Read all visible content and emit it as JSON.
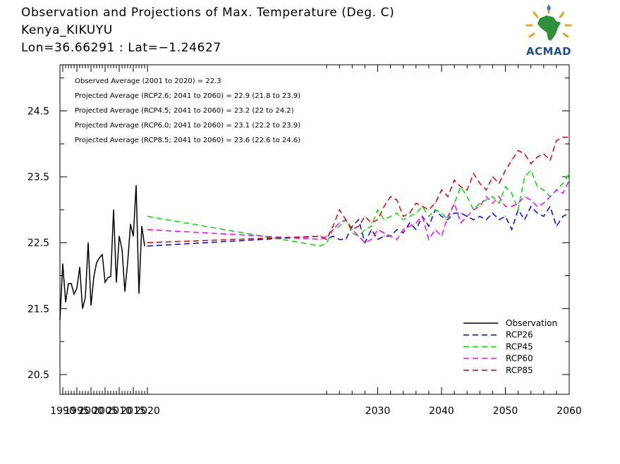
{
  "header": {
    "title": "Observation and Projections of Max. Temperature (Deg. C)",
    "location": "Kenya_KIKUYU",
    "coords": "Lon=36.66291 : Lat=−1.24627"
  },
  "logo": {
    "text": "ACMAD",
    "icon": "africa-map-logo-icon"
  },
  "colors": {
    "Observation": "#000000",
    "RCP26": "#0000ff",
    "RCP45": "#00e000",
    "RCP60": "#ff00ff",
    "RCP85": "#e00000"
  },
  "annotations": [
    "Observed Average (2001 to 2020) = 22.3",
    "Projected Average (RCP2.6; 2041 to 2060) = 22.9 (21.8 to 23.9)",
    "Projected Average (RCP4.5; 2041 to 2060) = 23.2 (22 to 24.2)",
    "Projected Average (RCP6.0; 2041 to 2060) = 23.1 (22.2 to 23.9)",
    "Projected Average (RCP8.5; 2041 to 2060) = 23.6 (22.6 to 24.6)"
  ],
  "legend": [
    "Observation",
    "RCP26",
    "RCP45",
    "RCP60",
    "RCP85"
  ],
  "chart_data": {
    "type": "line",
    "xlim": [
      1989,
      2060
    ],
    "ylim": [
      20.2,
      25.2
    ],
    "xticks_labeled": [
      1990,
      1995,
      2000,
      2005,
      2010,
      2015,
      2020,
      2030,
      2040,
      2050,
      2060
    ],
    "yticks_labeled": [
      20.5,
      21.5,
      22.5,
      23.5,
      24.5
    ],
    "xtick_labels": [
      "1990",
      "1995",
      "2000",
      "2005",
      "2010",
      "2015",
      "2020",
      "2030",
      "2040",
      "2050",
      "2060"
    ],
    "ytick_labels": [
      "20.5",
      "21.5",
      "22.5",
      "23.5",
      "24.5"
    ],
    "grid": false,
    "legend_position": "bottom-right",
    "series": [
      {
        "name": "Observation",
        "style": "solid",
        "x": [
          1989,
          1990,
          1991,
          1992,
          1993,
          1994,
          1995,
          1996,
          1997,
          1998,
          1999,
          2000,
          2001,
          2002,
          2003,
          2004,
          2005,
          2006,
          2007,
          2008,
          2009,
          2010,
          2011,
          2012,
          2013,
          2014,
          2015,
          2016,
          2017,
          2018,
          2019
        ],
        "values": [
          21.33,
          22.18,
          21.6,
          21.88,
          21.88,
          21.72,
          21.81,
          22.13,
          21.5,
          21.67,
          22.5,
          21.55,
          21.98,
          22.2,
          22.27,
          22.32,
          21.9,
          21.97,
          21.99,
          23.0,
          21.9,
          22.6,
          22.4,
          21.76,
          22.2,
          22.78,
          22.6,
          23.37,
          21.73,
          22.75,
          22.45
        ]
      },
      {
        "name": "RCP26",
        "style": "dashed",
        "x": [
          2020,
          2021,
          2022,
          2023,
          2024,
          2025,
          2026,
          2027,
          2028,
          2029,
          2030,
          2031,
          2032,
          2033,
          2034,
          2035,
          2036,
          2037,
          2038,
          2039,
          2040,
          2041,
          2042,
          2043,
          2044,
          2045,
          2046,
          2047,
          2048,
          2049,
          2050,
          2051,
          2052,
          2053,
          2054,
          2055,
          2056,
          2057,
          2058,
          2059,
          2060
        ],
        "values": [
          22.45,
          22.6,
          22.55,
          22.6,
          22.55,
          22.55,
          22.75,
          22.85,
          22.5,
          22.7,
          22.55,
          22.6,
          22.6,
          22.7,
          22.65,
          22.8,
          22.7,
          22.9,
          22.75,
          23.0,
          22.9,
          22.85,
          22.95,
          22.95,
          22.9,
          22.85,
          22.9,
          22.85,
          22.95,
          22.85,
          22.9,
          22.7,
          23.0,
          22.85,
          23.05,
          22.95,
          22.9,
          23.05,
          22.75,
          22.9,
          22.95
        ]
      },
      {
        "name": "RCP45",
        "style": "dashed",
        "x": [
          2020,
          2021,
          2022,
          2023,
          2024,
          2025,
          2026,
          2027,
          2028,
          2029,
          2030,
          2031,
          2032,
          2033,
          2034,
          2035,
          2036,
          2037,
          2038,
          2039,
          2040,
          2041,
          2042,
          2043,
          2044,
          2045,
          2046,
          2047,
          2048,
          2049,
          2050,
          2051,
          2052,
          2053,
          2054,
          2055,
          2056,
          2057,
          2058,
          2059,
          2060
        ],
        "values": [
          22.9,
          22.45,
          22.5,
          22.7,
          22.75,
          22.85,
          22.65,
          22.6,
          22.7,
          22.75,
          23.0,
          22.85,
          22.9,
          22.95,
          22.85,
          22.9,
          22.95,
          23.05,
          22.9,
          23.0,
          22.95,
          22.85,
          23.1,
          23.35,
          23.2,
          23.0,
          23.1,
          23.15,
          23.2,
          23.1,
          23.35,
          23.25,
          23.0,
          23.5,
          23.6,
          23.35,
          23.3,
          23.2,
          23.3,
          23.4,
          23.55
        ]
      },
      {
        "name": "RCP60",
        "style": "dashed",
        "x": [
          2020,
          2021,
          2022,
          2023,
          2024,
          2025,
          2026,
          2027,
          2028,
          2029,
          2030,
          2031,
          2032,
          2033,
          2034,
          2035,
          2036,
          2037,
          2038,
          2039,
          2040,
          2041,
          2042,
          2043,
          2044,
          2045,
          2046,
          2047,
          2048,
          2049,
          2050,
          2051,
          2052,
          2053,
          2054,
          2055,
          2056,
          2057,
          2058,
          2059,
          2060
        ],
        "values": [
          22.7,
          22.55,
          22.6,
          22.7,
          22.8,
          22.85,
          22.7,
          22.6,
          22.5,
          22.55,
          22.7,
          22.65,
          22.6,
          22.55,
          22.7,
          22.75,
          22.8,
          22.9,
          22.55,
          22.7,
          22.6,
          22.9,
          23.1,
          22.8,
          22.9,
          23.0,
          23.05,
          23.2,
          23.1,
          23.2,
          23.05,
          23.05,
          23.1,
          23.2,
          23.15,
          23.05,
          23.1,
          23.2,
          23.3,
          23.25,
          23.45
        ]
      },
      {
        "name": "RCP85",
        "style": "dashed",
        "x": [
          2020,
          2021,
          2022,
          2023,
          2024,
          2025,
          2026,
          2027,
          2028,
          2029,
          2030,
          2031,
          2032,
          2033,
          2034,
          2035,
          2036,
          2037,
          2038,
          2039,
          2040,
          2041,
          2042,
          2043,
          2044,
          2045,
          2046,
          2047,
          2048,
          2049,
          2050,
          2051,
          2052,
          2053,
          2054,
          2055,
          2056,
          2057,
          2058,
          2059,
          2060
        ],
        "values": [
          22.5,
          22.6,
          22.55,
          22.75,
          23.0,
          22.85,
          22.7,
          22.75,
          22.9,
          22.8,
          22.85,
          23.05,
          23.2,
          23.15,
          22.9,
          22.95,
          23.1,
          23.05,
          23.0,
          23.1,
          23.3,
          23.2,
          23.45,
          23.35,
          23.3,
          23.55,
          23.4,
          23.3,
          23.5,
          23.4,
          23.6,
          23.75,
          23.9,
          23.85,
          23.7,
          23.8,
          23.85,
          23.75,
          24.05,
          24.1,
          24.1
        ]
      }
    ]
  }
}
